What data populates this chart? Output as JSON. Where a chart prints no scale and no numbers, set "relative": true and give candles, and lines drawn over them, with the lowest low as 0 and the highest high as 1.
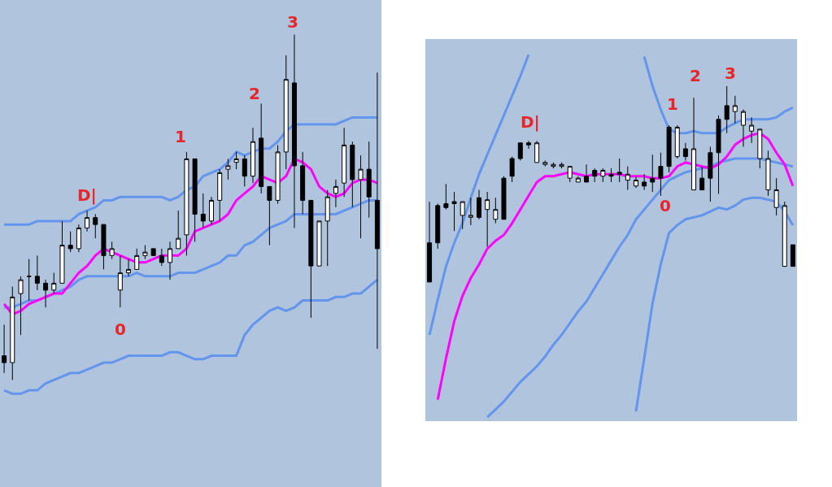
{
  "chart_data": [
    {
      "type": "candlestick",
      "relative": true,
      "categories": [
        null,
        null,
        null,
        null,
        null,
        null,
        null,
        null,
        null,
        null,
        null,
        null,
        null,
        null,
        null,
        null,
        null,
        null,
        null,
        null,
        null,
        null,
        null,
        null,
        null,
        null,
        null,
        null,
        null,
        null,
        null,
        null,
        null,
        null,
        null,
        null,
        null,
        null,
        null,
        null,
        null,
        null,
        null,
        null,
        null,
        null
      ],
      "ohlc": [
        [
          0.07,
          0.16,
          0.02,
          0.05
        ],
        [
          0.05,
          0.27,
          0.0,
          0.24
        ],
        [
          0.25,
          0.3,
          0.13,
          0.29
        ],
        [
          0.3,
          0.35,
          0.23,
          0.3
        ],
        [
          0.3,
          0.36,
          0.26,
          0.28
        ],
        [
          0.28,
          0.29,
          0.21,
          0.26
        ],
        [
          0.26,
          0.31,
          0.25,
          0.28
        ],
        [
          0.28,
          0.46,
          0.28,
          0.39
        ],
        [
          0.39,
          0.43,
          0.37,
          0.38
        ],
        [
          0.38,
          0.45,
          0.37,
          0.44
        ],
        [
          0.44,
          0.49,
          0.43,
          0.47
        ],
        [
          0.47,
          0.48,
          0.41,
          0.45
        ],
        [
          0.45,
          0.45,
          0.32,
          0.36
        ],
        [
          0.36,
          0.4,
          0.35,
          0.38
        ],
        [
          0.26,
          0.36,
          0.21,
          0.31
        ],
        [
          0.31,
          0.35,
          0.3,
          0.32
        ],
        [
          0.32,
          0.38,
          0.32,
          0.36
        ],
        [
          0.36,
          0.39,
          0.35,
          0.37
        ],
        [
          0.38,
          0.38,
          0.36,
          0.36
        ],
        [
          0.36,
          0.38,
          0.33,
          0.34
        ],
        [
          0.34,
          0.4,
          0.29,
          0.38
        ],
        [
          0.38,
          0.49,
          0.38,
          0.41
        ],
        [
          0.42,
          0.66,
          0.36,
          0.64
        ],
        [
          0.64,
          0.64,
          0.4,
          0.48
        ],
        [
          0.48,
          0.54,
          0.44,
          0.46
        ],
        [
          0.46,
          0.53,
          0.45,
          0.52
        ],
        [
          0.52,
          0.61,
          0.46,
          0.6
        ],
        [
          0.61,
          0.64,
          0.58,
          0.62
        ],
        [
          0.63,
          0.66,
          0.61,
          0.64
        ],
        [
          0.64,
          0.65,
          0.56,
          0.59
        ],
        [
          0.59,
          0.73,
          0.57,
          0.69
        ],
        [
          0.7,
          0.8,
          0.54,
          0.56
        ],
        [
          0.56,
          0.56,
          0.39,
          0.52
        ],
        [
          0.52,
          0.68,
          0.51,
          0.66
        ],
        [
          0.66,
          0.94,
          0.61,
          0.87
        ],
        [
          0.86,
          1.0,
          0.44,
          0.62
        ],
        [
          0.62,
          0.66,
          0.48,
          0.52
        ],
        [
          0.52,
          0.52,
          0.18,
          0.33
        ],
        [
          0.33,
          0.46,
          0.33,
          0.46
        ],
        [
          0.46,
          0.55,
          0.33,
          0.53
        ],
        [
          0.54,
          0.58,
          0.5,
          0.56
        ],
        [
          0.57,
          0.73,
          0.53,
          0.68
        ],
        [
          0.68,
          0.69,
          0.5,
          0.58
        ],
        [
          0.58,
          0.65,
          0.41,
          0.61
        ],
        [
          0.61,
          0.69,
          0.47,
          0.53
        ],
        [
          0.52,
          0.89,
          0.09,
          0.38
        ]
      ],
      "series": [
        {
          "type": "line",
          "color": "#6495ed",
          "values": [
            0.45,
            0.45,
            0.45,
            0.45,
            0.46,
            0.46,
            0.46,
            0.46,
            0.46,
            0.48,
            0.49,
            0.5,
            0.52,
            0.52,
            0.53,
            0.53,
            0.53,
            0.53,
            0.53,
            0.53,
            0.52,
            0.53,
            0.55,
            0.56,
            0.59,
            0.6,
            0.61,
            0.63,
            0.66,
            0.65,
            0.66,
            0.67,
            0.67,
            0.69,
            0.72,
            0.74,
            0.74,
            0.74,
            0.74,
            0.74,
            0.74,
            0.75,
            0.76,
            0.76,
            0.76,
            0.76
          ]
        },
        {
          "type": "line",
          "color": "#6495ed",
          "values": [
            0.21,
            0.21,
            0.22,
            0.23,
            0.23,
            0.24,
            0.25,
            0.26,
            0.27,
            0.29,
            0.3,
            0.3,
            0.3,
            0.3,
            0.3,
            0.3,
            0.31,
            0.3,
            0.3,
            0.3,
            0.3,
            0.31,
            0.31,
            0.31,
            0.32,
            0.33,
            0.34,
            0.36,
            0.36,
            0.39,
            0.4,
            0.42,
            0.44,
            0.45,
            0.46,
            0.48,
            0.48,
            0.48,
            0.48,
            0.48,
            0.48,
            0.49,
            0.5,
            0.51,
            0.52,
            0.52
          ]
        },
        {
          "type": "line",
          "color": "#6495ed",
          "values": [
            -0.03,
            -0.04,
            -0.04,
            -0.03,
            -0.03,
            -0.01,
            0.0,
            0.01,
            0.02,
            0.02,
            0.03,
            0.04,
            0.05,
            0.05,
            0.06,
            0.07,
            0.07,
            0.07,
            0.07,
            0.07,
            0.08,
            0.08,
            0.07,
            0.06,
            0.06,
            0.07,
            0.07,
            0.07,
            0.07,
            0.13,
            0.16,
            0.18,
            0.2,
            0.21,
            0.2,
            0.21,
            0.23,
            0.23,
            0.23,
            0.23,
            0.24,
            0.24,
            0.25,
            0.25,
            0.27,
            0.29
          ]
        },
        {
          "type": "line",
          "color": "#ff00ff",
          "values": [
            0.22,
            0.19,
            0.2,
            0.22,
            0.23,
            0.24,
            0.25,
            0.25,
            0.28,
            0.31,
            0.33,
            0.36,
            0.38,
            0.37,
            0.36,
            0.35,
            0.34,
            0.34,
            0.35,
            0.36,
            0.36,
            0.36,
            0.38,
            0.43,
            0.44,
            0.45,
            0.46,
            0.48,
            0.52,
            0.54,
            0.56,
            0.59,
            0.58,
            0.57,
            0.59,
            0.64,
            0.63,
            0.61,
            0.56,
            0.54,
            0.53,
            0.54,
            0.57,
            0.58,
            0.58,
            0.57
          ]
        }
      ],
      "annotations": [
        "D|",
        "0",
        "1",
        "2",
        "3"
      ]
    },
    {
      "type": "candlestick",
      "relative": true,
      "categories": [
        null,
        null,
        null,
        null,
        null,
        null,
        null,
        null,
        null,
        null,
        null,
        null,
        null,
        null,
        null,
        null,
        null,
        null,
        null,
        null,
        null,
        null,
        null,
        null,
        null,
        null,
        null,
        null,
        null,
        null,
        null,
        null,
        null,
        null,
        null,
        null,
        null,
        null,
        null,
        null,
        null,
        null,
        null,
        null,
        null
      ],
      "ohlc": [
        [
          0.2,
          0.41,
          0.0,
          0.0
        ],
        [
          0.39,
          0.4,
          0.17,
          0.2
        ],
        [
          0.4,
          0.5,
          0.37,
          0.38
        ],
        [
          0.41,
          0.46,
          0.26,
          0.4
        ],
        [
          0.34,
          0.41,
          0.27,
          0.41
        ],
        [
          0.33,
          0.43,
          0.29,
          0.34
        ],
        [
          0.43,
          0.47,
          0.32,
          0.33
        ],
        [
          0.37,
          0.46,
          0.18,
          0.42
        ],
        [
          0.32,
          0.43,
          0.3,
          0.37
        ],
        [
          0.53,
          0.54,
          0.32,
          0.32
        ],
        [
          0.63,
          0.64,
          0.51,
          0.54
        ],
        [
          0.71,
          0.71,
          0.62,
          0.63
        ],
        [
          0.71,
          0.72,
          0.68,
          0.7
        ],
        [
          0.61,
          0.72,
          0.61,
          0.71
        ],
        [
          0.6,
          0.62,
          0.59,
          0.61
        ],
        [
          0.59,
          0.61,
          0.58,
          0.6
        ],
        [
          0.59,
          0.61,
          0.58,
          0.6
        ],
        [
          0.53,
          0.59,
          0.51,
          0.59
        ],
        [
          0.51,
          0.54,
          0.51,
          0.53
        ],
        [
          0.54,
          0.6,
          0.51,
          0.51
        ],
        [
          0.57,
          0.58,
          0.51,
          0.54
        ],
        [
          0.54,
          0.58,
          0.51,
          0.57
        ],
        [
          0.55,
          0.58,
          0.51,
          0.54
        ],
        [
          0.56,
          0.63,
          0.51,
          0.55
        ],
        [
          0.52,
          0.59,
          0.47,
          0.55
        ],
        [
          0.49,
          0.54,
          0.48,
          0.52
        ],
        [
          0.51,
          0.55,
          0.47,
          0.49
        ],
        [
          0.53,
          0.65,
          0.46,
          0.51
        ],
        [
          0.59,
          0.66,
          0.44,
          0.53
        ],
        [
          0.79,
          0.8,
          0.56,
          0.59
        ],
        [
          0.64,
          0.8,
          0.63,
          0.79
        ],
        [
          0.68,
          0.71,
          0.62,
          0.64
        ],
        [
          0.47,
          0.94,
          0.47,
          0.68
        ],
        [
          0.53,
          0.59,
          0.47,
          0.47
        ],
        [
          0.66,
          0.69,
          0.41,
          0.53
        ],
        [
          0.83,
          0.85,
          0.45,
          0.66
        ],
        [
          0.9,
          1.0,
          0.76,
          0.83
        ],
        [
          0.87,
          0.95,
          0.81,
          0.9
        ],
        [
          0.8,
          0.88,
          0.69,
          0.87
        ],
        [
          0.77,
          0.84,
          0.71,
          0.8
        ],
        [
          0.63,
          0.78,
          0.58,
          0.78
        ],
        [
          0.47,
          0.67,
          0.44,
          0.63
        ],
        [
          0.38,
          0.53,
          0.34,
          0.47
        ],
        [
          0.08,
          0.41,
          0.08,
          0.39
        ],
        [
          0.19,
          0.19,
          0.08,
          0.08
        ]
      ],
      "series": [
        {
          "type": "line",
          "color": "#6495ed",
          "values": [
            -0.27,
            -0.09,
            0.08,
            0.2,
            0.3,
            0.43,
            0.55,
            0.65,
            0.75,
            0.85,
            0.95,
            1.05,
            1.16,
            null,
            null,
            null,
            null,
            null,
            null,
            null,
            null,
            null,
            null,
            null,
            null,
            null,
            1.15,
            1.0,
            0.88,
            0.78,
            0.76,
            0.76,
            0.77,
            0.76,
            0.76,
            0.76,
            0.79,
            0.81,
            0.83,
            0.83,
            0.83,
            0.83,
            0.84,
            0.87,
            0.89
          ]
        },
        {
          "type": "line",
          "color": "#6495ed",
          "values": [
            null,
            null,
            null,
            null,
            null,
            null,
            null,
            -0.69,
            -0.65,
            -0.61,
            -0.56,
            -0.51,
            -0.47,
            -0.43,
            -0.38,
            -0.32,
            -0.27,
            -0.21,
            -0.15,
            -0.1,
            -0.03,
            0.04,
            0.11,
            0.18,
            0.24,
            0.32,
            0.37,
            0.42,
            0.47,
            0.52,
            0.54,
            0.56,
            0.57,
            0.58,
            0.59,
            0.61,
            0.62,
            0.63,
            0.63,
            0.63,
            0.63,
            0.62,
            0.61,
            0.6,
            0.59
          ]
        },
        {
          "type": "line",
          "color": "#6495ed",
          "values": [
            null,
            null,
            null,
            null,
            null,
            null,
            null,
            null,
            null,
            null,
            null,
            null,
            null,
            null,
            null,
            null,
            null,
            null,
            null,
            null,
            null,
            null,
            null,
            null,
            null,
            -0.66,
            -0.39,
            -0.11,
            0.09,
            0.25,
            0.29,
            0.32,
            0.33,
            0.34,
            0.36,
            0.38,
            0.37,
            0.39,
            0.42,
            0.43,
            0.43,
            0.42,
            0.41,
            0.36,
            0.29
          ]
        },
        {
          "type": "line",
          "color": "#ff00ff",
          "values": [
            null,
            -0.6,
            -0.39,
            -0.2,
            -0.07,
            0.02,
            0.09,
            0.17,
            0.21,
            0.24,
            0.3,
            0.37,
            0.44,
            0.51,
            0.54,
            0.54,
            0.55,
            0.56,
            0.55,
            0.54,
            0.55,
            0.55,
            0.55,
            0.55,
            0.54,
            0.54,
            0.54,
            0.53,
            0.53,
            0.54,
            0.59,
            0.61,
            0.6,
            0.59,
            0.58,
            0.6,
            0.64,
            0.7,
            0.73,
            0.75,
            0.76,
            0.73,
            0.66,
            0.6,
            0.49
          ]
        }
      ],
      "annotations": [
        "D|",
        "0",
        "1",
        "2",
        "3"
      ]
    }
  ]
}
